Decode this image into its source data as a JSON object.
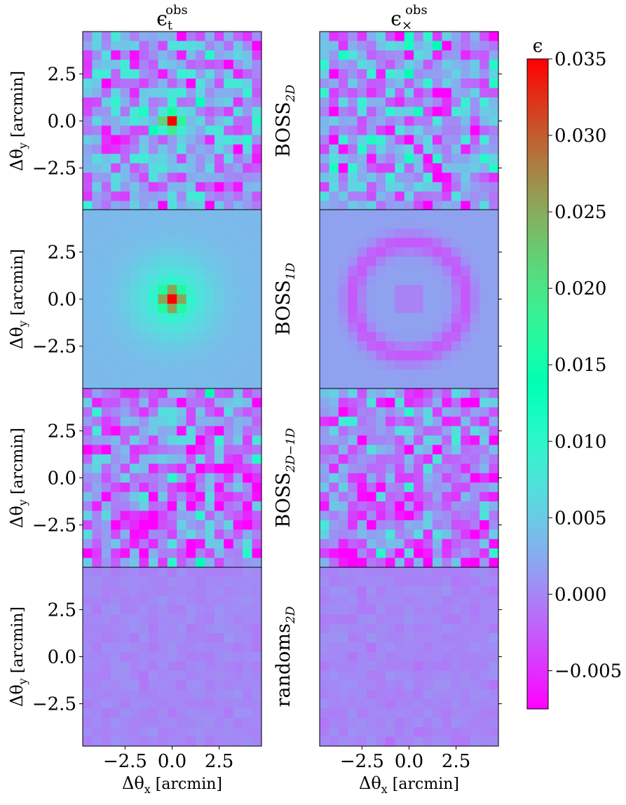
{
  "chart_data": {
    "type": "heatmap",
    "grid_size": 19,
    "columns": [
      {
        "title_base": "ϵ",
        "title_sub": "t",
        "title_sup": "obs",
        "component": "tangential"
      },
      {
        "title_base": "ϵ",
        "title_sub": "×",
        "title_sup": "obs",
        "component": "cross"
      }
    ],
    "rows": [
      {
        "label_base": "BOSS",
        "label_sub": "2D",
        "peak_t": 0.035,
        "noise_t": 0.0045,
        "noise_x": 0.0045,
        "mean": 0.0015,
        "mode": "noisy"
      },
      {
        "label_base": "BOSS",
        "label_sub": "1D",
        "peak_t": 0.035,
        "noise_t": 0.0,
        "noise_x": 0.0,
        "mean": 0.0,
        "mode": "radial"
      },
      {
        "label_base": "BOSS",
        "label_sub": "2D−1D",
        "peak_t": 0.0,
        "noise_t": 0.0045,
        "noise_x": 0.0045,
        "mean": -0.0005,
        "mode": "noisy"
      },
      {
        "label_base": "randoms",
        "label_sub": "2D",
        "peak_t": 0.0,
        "noise_t": 0.0004,
        "noise_x": 0.0004,
        "mean": 0.0,
        "mode": "noisy"
      }
    ],
    "xlabel": {
      "base": "Δθ",
      "sub": "x",
      "unit": "[arcmin]"
    },
    "ylabel": {
      "base": "Δθ",
      "sub": "y",
      "unit": "[arcmin]"
    },
    "x_range": [
      -4.75,
      4.75
    ],
    "y_range": [
      -4.75,
      4.75
    ],
    "x_ticks": [
      -2.5,
      0.0,
      2.5
    ],
    "y_ticks": [
      -2.5,
      0.0,
      2.5
    ],
    "x_tick_labels": [
      "−2.5",
      "0.0",
      "2.5"
    ],
    "y_tick_labels": [
      "−2.5",
      "0.0",
      "2.5"
    ],
    "colorbar": {
      "label": "ϵ",
      "vmin": -0.0075,
      "vmax": 0.035,
      "ticks": [
        -0.005,
        0.0,
        0.005,
        0.01,
        0.015,
        0.02,
        0.025,
        0.03,
        0.035
      ],
      "tick_labels": [
        "−0.005",
        "0.000",
        "0.005",
        "0.010",
        "0.015",
        "0.020",
        "0.025",
        "0.030",
        "0.035"
      ],
      "colormap": "rainbow"
    }
  }
}
